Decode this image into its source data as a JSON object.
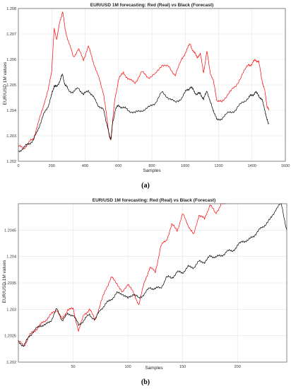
{
  "chart_data": [
    {
      "type": "line",
      "title": "EUR/USD 1M forecasting: Red (Real) vs Black (Forecast)",
      "xlabel": "Samples",
      "ylabel": "EUR/USD 1M values",
      "xlim": [
        0,
        1600
      ],
      "ylim": [
        1.202,
        1.208
      ],
      "xticks": [
        0,
        200,
        400,
        600,
        800,
        1000,
        1200,
        1400,
        1600
      ],
      "yticks": [
        1.202,
        1.203,
        1.204,
        1.205,
        1.206,
        1.207,
        1.208
      ],
      "grid": true,
      "caption": "(a)",
      "series": [
        {
          "name": "Real",
          "color": "#ff0000",
          "x": [
            0,
            30,
            60,
            90,
            120,
            150,
            180,
            200,
            215,
            230,
            250,
            265,
            280,
            300,
            330,
            360,
            390,
            420,
            450,
            480,
            510,
            530,
            545,
            555,
            565,
            580,
            600,
            630,
            660,
            700,
            740,
            780,
            820,
            860,
            900,
            940,
            980,
            1010,
            1030,
            1050,
            1070,
            1090,
            1110,
            1130,
            1150,
            1170,
            1190,
            1220,
            1260,
            1300,
            1340,
            1380,
            1400,
            1420,
            1440,
            1460,
            1475,
            1490,
            1500
          ],
          "y": [
            1.2026,
            1.2025,
            1.2027,
            1.2029,
            1.2035,
            1.2042,
            1.2048,
            1.2056,
            1.2072,
            1.2068,
            1.2075,
            1.2079,
            1.2072,
            1.2067,
            1.2061,
            1.2064,
            1.206,
            1.2065,
            1.2059,
            1.2053,
            1.2047,
            1.2037,
            1.203,
            1.2028,
            1.2036,
            1.2045,
            1.2052,
            1.2055,
            1.2052,
            1.2051,
            1.2055,
            1.2053,
            1.2054,
            1.2058,
            1.2057,
            1.2054,
            1.206,
            1.2064,
            1.2066,
            1.2063,
            1.2061,
            1.2062,
            1.2055,
            1.2063,
            1.2055,
            1.2051,
            1.2044,
            1.2043,
            1.2047,
            1.2049,
            1.2054,
            1.2058,
            1.2058,
            1.206,
            1.2059,
            1.2052,
            1.2048,
            1.2042,
            1.204
          ]
        },
        {
          "name": "Forecast",
          "color": "#000000",
          "x": [
            0,
            30,
            60,
            90,
            120,
            150,
            180,
            200,
            215,
            230,
            250,
            265,
            280,
            300,
            330,
            360,
            390,
            420,
            450,
            480,
            510,
            530,
            545,
            555,
            565,
            580,
            600,
            630,
            660,
            700,
            740,
            780,
            820,
            860,
            900,
            940,
            980,
            1010,
            1030,
            1050,
            1070,
            1090,
            1110,
            1130,
            1150,
            1170,
            1190,
            1220,
            1260,
            1300,
            1340,
            1380,
            1400,
            1420,
            1440,
            1460,
            1475,
            1490,
            1500
          ],
          "y": [
            1.2024,
            1.2025,
            1.2027,
            1.2028,
            1.2033,
            1.2038,
            1.2042,
            1.2046,
            1.205,
            1.2049,
            1.2052,
            1.2054,
            1.205,
            1.2048,
            1.2047,
            1.2049,
            1.2046,
            1.2048,
            1.2045,
            1.2042,
            1.204,
            1.2035,
            1.203,
            1.2029,
            1.2035,
            1.204,
            1.2042,
            1.2041,
            1.204,
            1.2039,
            1.204,
            1.2041,
            1.2043,
            1.2047,
            1.2045,
            1.2043,
            1.2045,
            1.2048,
            1.2049,
            1.2048,
            1.2046,
            1.2047,
            1.2044,
            1.2048,
            1.2043,
            1.204,
            1.2036,
            1.2037,
            1.2039,
            1.204,
            1.2043,
            1.2045,
            1.2046,
            1.2047,
            1.2046,
            1.2044,
            1.2041,
            1.2036,
            1.2035
          ]
        }
      ]
    },
    {
      "type": "line",
      "title": "EUR/USD 1M forecasting: Red (Real) vs Black (Forecast)",
      "xlabel": "Samples",
      "ylabel": "EUR/USD 1M values",
      "xlim": [
        0,
        245
      ],
      "ylim": [
        1.202,
        1.205
      ],
      "xticks": [
        50,
        100,
        150,
        200
      ],
      "yticks": [
        1.202,
        1.2025,
        1.203,
        1.2035,
        1.204,
        1.2045
      ],
      "xticklabels": [
        "50",
        "100",
        "150",
        "200"
      ],
      "yticklabels": [
        "1.202",
        "1.2025",
        "1.203",
        "1.2035",
        "1.204",
        "1.2045"
      ],
      "grid": true,
      "caption": "(b)",
      "series": [
        {
          "name": "Real",
          "color": "#ff0000",
          "x": [
            0,
            5,
            10,
            15,
            20,
            25,
            30,
            35,
            40,
            45,
            50,
            55,
            60,
            65,
            70,
            75,
            80,
            85,
            90,
            95,
            100,
            105,
            110,
            115,
            120,
            125,
            130,
            135,
            140,
            145,
            150,
            155,
            160,
            165,
            170,
            175,
            180,
            185,
            190
          ],
          "y": [
            1.2024,
            1.2023,
            1.2025,
            1.2026,
            1.2027,
            1.2028,
            1.2029,
            1.203,
            1.2028,
            1.203,
            1.203,
            1.2026,
            1.2029,
            1.203,
            1.2028,
            1.2031,
            1.2034,
            1.2036,
            1.2035,
            1.2033,
            1.2035,
            1.2033,
            1.2031,
            1.2035,
            1.2038,
            1.2037,
            1.2042,
            1.2043,
            1.2046,
            1.2045,
            1.2048,
            1.2046,
            1.2044,
            1.2048,
            1.2047,
            1.205,
            1.2048,
            1.205,
            1.205
          ]
        },
        {
          "name": "Forecast",
          "color": "#000000",
          "x": [
            0,
            5,
            10,
            15,
            20,
            25,
            30,
            35,
            40,
            45,
            50,
            55,
            60,
            65,
            70,
            75,
            80,
            85,
            90,
            95,
            100,
            105,
            110,
            115,
            120,
            125,
            130,
            135,
            140,
            145,
            150,
            155,
            160,
            165,
            170,
            175,
            180,
            185,
            190,
            195,
            200,
            205,
            210,
            215,
            220,
            225,
            230,
            235,
            240,
            245
          ],
          "y": [
            1.2024,
            1.2023,
            1.2025,
            1.2026,
            1.2027,
            1.2027,
            1.2028,
            1.203,
            1.2028,
            1.2029,
            1.2029,
            1.2027,
            1.2028,
            1.2029,
            1.2028,
            1.203,
            1.2031,
            1.2032,
            1.2033,
            1.2033,
            1.2032,
            1.2033,
            1.2032,
            1.2033,
            1.2034,
            1.2034,
            1.2034,
            1.2036,
            1.2036,
            1.2037,
            1.2037,
            1.2038,
            1.2038,
            1.2039,
            1.2039,
            1.204,
            1.204,
            1.204,
            1.2041,
            1.2041,
            1.2042,
            1.2043,
            1.2043,
            1.2044,
            1.2045,
            1.2046,
            1.2047,
            1.2049,
            1.205,
            1.2045
          ]
        }
      ]
    }
  ]
}
